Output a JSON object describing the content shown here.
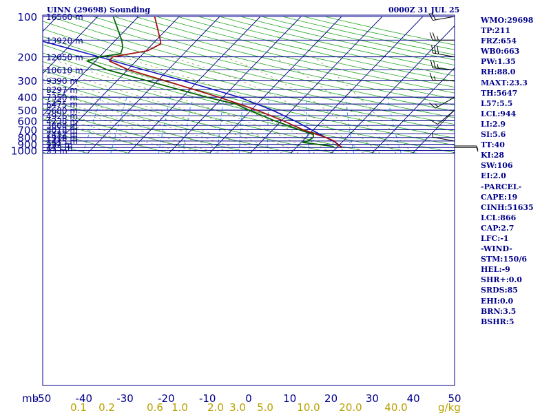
{
  "header": {
    "station": "UINN (29698) Sounding",
    "time": "0000Z 31 JUL 25"
  },
  "indices": [
    "WMO:29698",
    "TP:211",
    "FRZ:654",
    "WB0:663",
    "PW:1.35",
    "RH:88.0",
    "MAXT:23.3",
    "TH:5647",
    "L57:5.5",
    "LCL:944",
    "LI:2.9",
    "SI:5.6",
    "TT:40",
    "KI:28",
    "SW:106",
    "EI:2.0",
    "-PARCEL-",
    "CAPE:19",
    "CINH:51635",
    "LCL:866",
    "CAP:2.7",
    "LFC:-1",
    "-WIND-",
    "STM:150/6",
    "HEL:-9",
    "SHR+:0.0",
    "SRDS:85",
    "EHI:0.0",
    "BRN:3.5",
    "BSHR:5"
  ],
  "colors": {
    "isobar": "#00008b",
    "isotherm": "#00008b",
    "dry_adiabat": "#22a822",
    "moist_adiabat": "#6b8e23",
    "mixing_ratio": "#1e90ff",
    "temperature": "#a01010",
    "dewpoint": "#006400",
    "parcel": "#1010c0",
    "wind_barb": "#000000",
    "tick_label": "#00008b",
    "mixing_label": "#b8a000"
  },
  "chart_data": {
    "type": "skew-t",
    "pressure_label_text": "mb",
    "mixing_unit": "g/kg",
    "pressure_ticks": [
      100,
      200,
      300,
      400,
      500,
      600,
      700,
      800,
      900,
      1000
    ],
    "temperature_ticks": [
      -50,
      -40,
      -30,
      -20,
      -10,
      0,
      10,
      20,
      30,
      40,
      50
    ],
    "temperature_tick_labels": [
      "-50",
      "-40",
      "-30",
      "-20",
      "-10",
      "0",
      "10",
      "20",
      "30",
      "40",
      "50"
    ],
    "mixing_ratio_labels": [
      "0.1",
      "0.2",
      "0.6",
      "1.0",
      "2.0",
      "3.0",
      "5.0",
      "10.0",
      "20.0",
      "40.0"
    ],
    "mixing_ratio_values": [
      0.1,
      0.2,
      0.6,
      1.0,
      2.0,
      3.0,
      5.0,
      10.0,
      20.0,
      40.0
    ],
    "heights": [
      {
        "p": 100,
        "label": "16560 m"
      },
      {
        "p": 150,
        "label": "13920 m"
      },
      {
        "p": 200,
        "label": "12050 m"
      },
      {
        "p": 250,
        "label": "10610 m"
      },
      {
        "p": 300,
        "label": "9390 m"
      },
      {
        "p": 350,
        "label": "8297 m"
      },
      {
        "p": 400,
        "label": "7350 m"
      },
      {
        "p": 450,
        "label": "6475 m"
      },
      {
        "p": 500,
        "label": "5680 m"
      },
      {
        "p": 550,
        "label": "4926 m"
      },
      {
        "p": 600,
        "label": "4238 m"
      },
      {
        "p": 650,
        "label": "3604 m"
      },
      {
        "p": 700,
        "label": "3018 m"
      },
      {
        "p": 750,
        "label": "2452 m"
      },
      {
        "p": 800,
        "label": "1918 m"
      },
      {
        "p": 850,
        "label": "1415 m"
      },
      {
        "p": 900,
        "label": "932 m"
      },
      {
        "p": 950,
        "label": "473 m"
      },
      {
        "p": 1000,
        "label": "33 m"
      }
    ],
    "temperature": [
      {
        "p": 955,
        "t": 21.2
      },
      {
        "p": 935,
        "t": 20.8
      },
      {
        "p": 900,
        "t": 19.2
      },
      {
        "p": 880,
        "t": 18.8
      },
      {
        "p": 850,
        "t": 17.8
      },
      {
        "p": 800,
        "t": 14.9
      },
      {
        "p": 760,
        "t": 12.0
      },
      {
        "p": 700,
        "t": 7.4
      },
      {
        "p": 600,
        "t": 0.4
      },
      {
        "p": 500,
        "t": -8.6
      },
      {
        "p": 450,
        "t": -14.4
      },
      {
        "p": 400,
        "t": -21.0
      },
      {
        "p": 300,
        "t": -38.5
      },
      {
        "p": 250,
        "t": -49.8
      },
      {
        "p": 215,
        "t": -56.5
      },
      {
        "p": 200,
        "t": -56.8
      },
      {
        "p": 180,
        "t": -49.6
      },
      {
        "p": 160,
        "t": -48.0
      },
      {
        "p": 150,
        "t": -49.0
      },
      {
        "p": 100,
        "t": -56.0
      }
    ],
    "dewpoint": [
      {
        "p": 955,
        "t": 19.5
      },
      {
        "p": 930,
        "t": 18.5
      },
      {
        "p": 900,
        "t": 14.5
      },
      {
        "p": 870,
        "t": 10.3
      },
      {
        "p": 850,
        "t": 11.3
      },
      {
        "p": 800,
        "t": 11.8
      },
      {
        "p": 760,
        "t": 11.1
      },
      {
        "p": 700,
        "t": 6.5
      },
      {
        "p": 600,
        "t": -1.7
      },
      {
        "p": 500,
        "t": -10.5
      },
      {
        "p": 450,
        "t": -15.2
      },
      {
        "p": 400,
        "t": -24.0
      },
      {
        "p": 300,
        "t": -43.0
      },
      {
        "p": 250,
        "t": -55.0
      },
      {
        "p": 215,
        "t": -62.0
      },
      {
        "p": 200,
        "t": -60.0
      },
      {
        "p": 190,
        "t": -55.5
      },
      {
        "p": 170,
        "t": -56.5
      },
      {
        "p": 150,
        "t": -58.5
      },
      {
        "p": 100,
        "t": -66.2
      }
    ],
    "parcel": [
      {
        "p": 955,
        "t": 21.2
      },
      {
        "p": 930,
        "t": 20.5
      },
      {
        "p": 900,
        "t": 19.6
      },
      {
        "p": 866,
        "t": 18.2
      },
      {
        "p": 800,
        "t": 14.9
      },
      {
        "p": 700,
        "t": 9.5
      },
      {
        "p": 600,
        "t": 3.2
      },
      {
        "p": 500,
        "t": -4.8
      },
      {
        "p": 400,
        "t": -16.0
      },
      {
        "p": 300,
        "t": -34.0
      },
      {
        "p": 250,
        "t": -46.0
      },
      {
        "p": 200,
        "t": -60.0
      },
      {
        "p": 150,
        "t": -79.0
      },
      {
        "p": 100,
        "t": -97.0
      }
    ],
    "wind_barbs": [
      {
        "p": 100,
        "dir": 260,
        "kt": 20
      },
      {
        "p": 150,
        "dir": 270,
        "kt": 25
      },
      {
        "p": 200,
        "dir": 280,
        "kt": 30
      },
      {
        "p": 250,
        "dir": 275,
        "kt": 25
      },
      {
        "p": 300,
        "dir": 270,
        "kt": 15
      },
      {
        "p": 400,
        "dir": 240,
        "kt": 15
      },
      {
        "p": 500,
        "dir": 230,
        "kt": 10
      },
      {
        "p": 850,
        "dir": 280,
        "kt": 5
      },
      {
        "p": 925,
        "dir": 90,
        "kt": 5
      },
      {
        "p": 950,
        "dir": 90,
        "kt": 5
      }
    ]
  }
}
